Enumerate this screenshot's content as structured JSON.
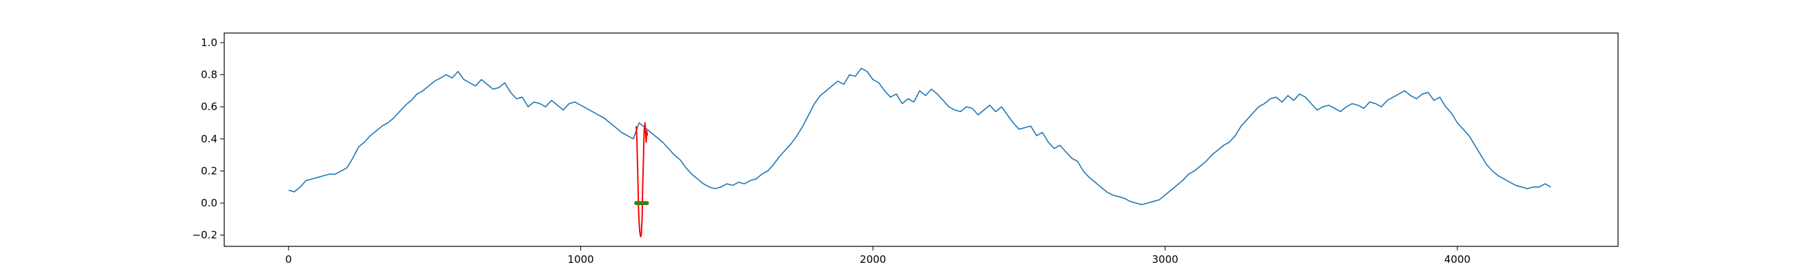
{
  "chart_data": {
    "type": "line",
    "title": "",
    "xlabel": "",
    "ylabel": "",
    "xlim": [
      -220,
      4550
    ],
    "ylim": [
      -0.27,
      1.06
    ],
    "grid": false,
    "legend": "none",
    "x_ticks": [
      0,
      1000,
      2000,
      3000,
      4000
    ],
    "x_tick_labels": [
      "0",
      "1000",
      "2000",
      "3000",
      "4000"
    ],
    "y_ticks": [
      -0.2,
      0.0,
      0.2,
      0.4,
      0.6,
      0.8,
      1.0
    ],
    "y_tick_labels": [
      "−0.2",
      "0.0",
      "0.2",
      "0.4",
      "0.6",
      "0.8",
      "1.0"
    ],
    "colors": {
      "series": "#1f77b4",
      "anomaly": "#ff0000",
      "markers": "#3c7f1f"
    },
    "series": [
      {
        "color": "#1f77b4",
        "x": [
          0,
          20,
          40,
          60,
          80,
          100,
          120,
          140,
          160,
          180,
          200,
          220,
          240,
          260,
          280,
          300,
          320,
          340,
          360,
          380,
          400,
          420,
          440,
          460,
          480,
          500,
          520,
          540,
          560,
          580,
          600,
          620,
          640,
          660,
          680,
          700,
          720,
          740,
          760,
          780,
          800,
          820,
          840,
          860,
          880,
          900,
          920,
          940,
          960,
          980,
          1000,
          1020,
          1040,
          1060,
          1080,
          1100,
          1120,
          1140,
          1160,
          1180,
          1200,
          1220,
          1240,
          1260,
          1280,
          1300,
          1320,
          1340,
          1360,
          1380,
          1400,
          1420,
          1440,
          1460,
          1480,
          1500,
          1520,
          1540,
          1560,
          1580,
          1600,
          1620,
          1640,
          1660,
          1680,
          1700,
          1720,
          1740,
          1760,
          1780,
          1800,
          1820,
          1840,
          1860,
          1880,
          1900,
          1920,
          1940,
          1960,
          1980,
          2000,
          2020,
          2040,
          2060,
          2080,
          2100,
          2120,
          2140,
          2160,
          2180,
          2200,
          2220,
          2240,
          2260,
          2280,
          2300,
          2320,
          2340,
          2360,
          2380,
          2400,
          2420,
          2440,
          2460,
          2480,
          2500,
          2520,
          2540,
          2560,
          2580,
          2600,
          2620,
          2640,
          2660,
          2680,
          2700,
          2720,
          2740,
          2760,
          2780,
          2800,
          2820,
          2840,
          2860,
          2880,
          2900,
          2920,
          2940,
          2960,
          2980,
          3000,
          3020,
          3040,
          3060,
          3080,
          3100,
          3120,
          3140,
          3160,
          3180,
          3200,
          3220,
          3240,
          3260,
          3280,
          3300,
          3320,
          3340,
          3360,
          3380,
          3400,
          3420,
          3440,
          3460,
          3480,
          3500,
          3520,
          3540,
          3560,
          3580,
          3600,
          3620,
          3640,
          3660,
          3680,
          3700,
          3720,
          3740,
          3760,
          3780,
          3800,
          3820,
          3840,
          3860,
          3880,
          3900,
          3920,
          3940,
          3960,
          3980,
          4000,
          4020,
          4040,
          4060,
          4080,
          4100,
          4120,
          4140,
          4160,
          4180,
          4200,
          4220,
          4240,
          4260,
          4280,
          4300,
          4320
        ],
        "y": [
          0.08,
          0.07,
          0.1,
          0.14,
          0.15,
          0.16,
          0.17,
          0.18,
          0.18,
          0.2,
          0.22,
          0.28,
          0.35,
          0.38,
          0.42,
          0.45,
          0.48,
          0.5,
          0.53,
          0.57,
          0.61,
          0.64,
          0.68,
          0.7,
          0.73,
          0.76,
          0.78,
          0.8,
          0.78,
          0.82,
          0.77,
          0.75,
          0.73,
          0.77,
          0.74,
          0.71,
          0.72,
          0.75,
          0.69,
          0.65,
          0.66,
          0.6,
          0.63,
          0.62,
          0.6,
          0.64,
          0.61,
          0.58,
          0.62,
          0.63,
          0.61,
          0.59,
          0.57,
          0.55,
          0.53,
          0.5,
          0.47,
          0.44,
          0.42,
          0.4,
          0.5,
          0.47,
          0.44,
          0.41,
          0.38,
          0.34,
          0.3,
          0.27,
          0.22,
          0.18,
          0.15,
          0.12,
          0.1,
          0.09,
          0.1,
          0.12,
          0.11,
          0.13,
          0.12,
          0.14,
          0.15,
          0.18,
          0.2,
          0.24,
          0.29,
          0.33,
          0.37,
          0.42,
          0.48,
          0.55,
          0.62,
          0.67,
          0.7,
          0.73,
          0.76,
          0.74,
          0.8,
          0.79,
          0.84,
          0.82,
          0.77,
          0.75,
          0.7,
          0.66,
          0.68,
          0.62,
          0.65,
          0.63,
          0.7,
          0.67,
          0.71,
          0.68,
          0.64,
          0.6,
          0.58,
          0.57,
          0.6,
          0.59,
          0.55,
          0.58,
          0.61,
          0.57,
          0.6,
          0.55,
          0.5,
          0.46,
          0.47,
          0.48,
          0.42,
          0.44,
          0.38,
          0.34,
          0.36,
          0.32,
          0.28,
          0.26,
          0.2,
          0.16,
          0.13,
          0.1,
          0.07,
          0.05,
          0.04,
          0.03,
          0.01,
          0.0,
          -0.01,
          0.0,
          0.01,
          0.02,
          0.05,
          0.08,
          0.11,
          0.14,
          0.18,
          0.2,
          0.23,
          0.26,
          0.3,
          0.33,
          0.36,
          0.38,
          0.42,
          0.48,
          0.52,
          0.56,
          0.6,
          0.62,
          0.65,
          0.66,
          0.63,
          0.67,
          0.64,
          0.68,
          0.66,
          0.62,
          0.58,
          0.6,
          0.61,
          0.59,
          0.57,
          0.6,
          0.62,
          0.61,
          0.59,
          0.63,
          0.62,
          0.6,
          0.64,
          0.66,
          0.68,
          0.7,
          0.67,
          0.65,
          0.68,
          0.69,
          0.64,
          0.66,
          0.6,
          0.56,
          0.5,
          0.46,
          0.42,
          0.36,
          0.3,
          0.24,
          0.2,
          0.17,
          0.15,
          0.13,
          0.11,
          0.1,
          0.09,
          0.1,
          0.1,
          0.12,
          0.1
        ]
      },
      {
        "color": "#ff0000",
        "x": [
          1190,
          1192,
          1195,
          1198,
          1200,
          1202,
          1205,
          1207,
          1210,
          1212,
          1215,
          1217,
          1220,
          1222,
          1224,
          1226,
          1228
        ],
        "y": [
          0.48,
          0.4,
          0.2,
          -0.05,
          -0.12,
          -0.18,
          -0.21,
          -0.2,
          -0.1,
          0.1,
          0.3,
          0.45,
          0.5,
          0.43,
          0.38,
          0.45,
          0.42
        ]
      }
    ],
    "markers": {
      "color": "#3c7f1f",
      "x": [
        1190,
        1196,
        1202,
        1208,
        1214,
        1220,
        1226
      ],
      "y": [
        0,
        0,
        0,
        0,
        0,
        0,
        0
      ]
    }
  }
}
